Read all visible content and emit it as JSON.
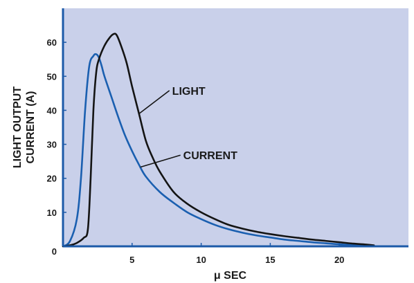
{
  "chart_data": {
    "type": "line",
    "title": "",
    "xlabel": "μ SEC",
    "ylabel_lines": [
      "LIGHT OUTPUT",
      "CURRENT (A)"
    ],
    "xlim": [
      0,
      25
    ],
    "ylim": [
      0,
      70
    ],
    "x_ticks": [
      5,
      10,
      15,
      20
    ],
    "y_ticks": [
      0,
      10,
      20,
      30,
      40,
      50,
      60
    ],
    "grid": false,
    "legend": "none",
    "colors": {
      "plot_background": "#c9d0ea",
      "axis": "#1c5aa8",
      "current": "#1a5fb0",
      "light": "#141414"
    },
    "series": [
      {
        "key": "current",
        "color": "#1a5fb0",
        "x": [
          0,
          0.5,
          1.0,
          1.3,
          1.6,
          1.9,
          2.2,
          2.4,
          2.6,
          2.8,
          3.0,
          3.5,
          4.0,
          4.5,
          5.0,
          5.5,
          6.0,
          7.0,
          8.0,
          9.0,
          10.0,
          11.0,
          12.0,
          13.0,
          14.0,
          15.0,
          16.0,
          17.0,
          18.0,
          19.0,
          20.0,
          21.0,
          22.0,
          22.5
        ],
        "y": [
          0,
          1.5,
          8,
          20,
          40,
          53,
          56,
          56.5,
          55.5,
          53,
          50,
          44,
          38,
          32.5,
          28,
          24,
          20.5,
          16,
          12.8,
          10,
          8,
          6.3,
          5,
          4,
          3.2,
          2.6,
          2,
          1.6,
          1.2,
          0.9,
          0.6,
          0.4,
          0.2,
          0.1
        ]
      },
      {
        "key": "light",
        "color": "#141414",
        "x": [
          0,
          0.5,
          1.0,
          1.5,
          1.8,
          2.0,
          2.2,
          2.4,
          2.6,
          3.0,
          3.4,
          3.7,
          3.9,
          4.2,
          4.6,
          5.0,
          5.5,
          6.0,
          6.5,
          7.0,
          8.0,
          9.0,
          10.0,
          11.0,
          12.0,
          13.0,
          14.0,
          15.0,
          16.0,
          17.0,
          18.0,
          19.0,
          20.0,
          21.0,
          22.0,
          22.5
        ],
        "y": [
          0,
          0.3,
          1,
          2.5,
          5,
          20,
          40,
          51,
          55,
          59,
          61.5,
          62.5,
          62,
          59,
          54,
          47,
          39,
          31,
          26,
          22,
          16,
          12.5,
          10,
          8,
          6.3,
          5.2,
          4.3,
          3.6,
          3,
          2.5,
          2,
          1.6,
          1.2,
          0.8,
          0.5,
          0.3
        ]
      }
    ],
    "annotations": [
      {
        "text": "LIGHT",
        "series": "light",
        "point_x": 5.5,
        "label_x": 7.9,
        "label_y": 45
      },
      {
        "text": "CURRENT",
        "series": "current",
        "point_x": 5.6,
        "label_x": 8.7,
        "label_y": 26
      }
    ]
  }
}
